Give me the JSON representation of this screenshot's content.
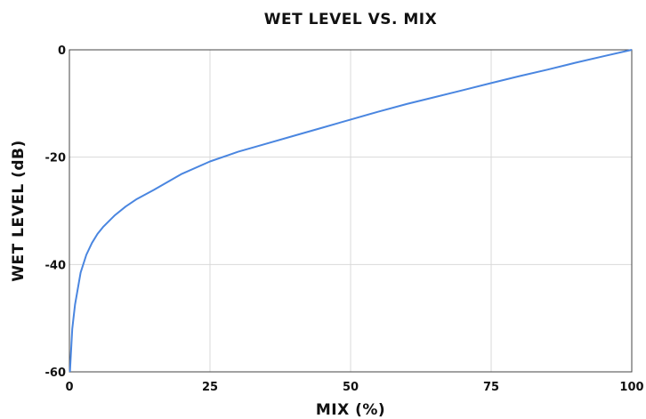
{
  "chart_data": {
    "type": "line",
    "title": "WET LEVEL VS. MIX",
    "xlabel": "MIX (%)",
    "ylabel": "WET LEVEL (dB)",
    "xlim": [
      0,
      100
    ],
    "ylim": [
      -60,
      0
    ],
    "x_ticks": [
      0,
      25,
      50,
      75,
      100
    ],
    "x_tick_labels": [
      "0",
      "25",
      "50",
      "75",
      "100"
    ],
    "y_ticks": [
      0,
      -20,
      -40,
      -60
    ],
    "y_tick_labels": [
      "0",
      "-20",
      "-40",
      "-60"
    ],
    "grid": true,
    "legend": "none",
    "series": [
      {
        "color": "#4a86e0",
        "x": [
          0.1,
          0.5,
          1,
          2,
          3,
          4,
          5,
          6,
          8,
          10,
          12,
          15,
          20,
          25,
          30,
          35,
          40,
          45,
          50,
          55,
          60,
          65,
          70,
          75,
          80,
          85,
          90,
          95,
          100
        ],
        "y": [
          -60,
          -52,
          -47.5,
          -41.5,
          -38.2,
          -36,
          -34.3,
          -33,
          -30.9,
          -29.2,
          -27.8,
          -26.1,
          -23.1,
          -20.8,
          -19,
          -17.5,
          -16,
          -14.5,
          -13,
          -11.5,
          -10.1,
          -8.8,
          -7.5,
          -6.2,
          -4.9,
          -3.7,
          -2.4,
          -1.2,
          0
        ]
      }
    ]
  }
}
